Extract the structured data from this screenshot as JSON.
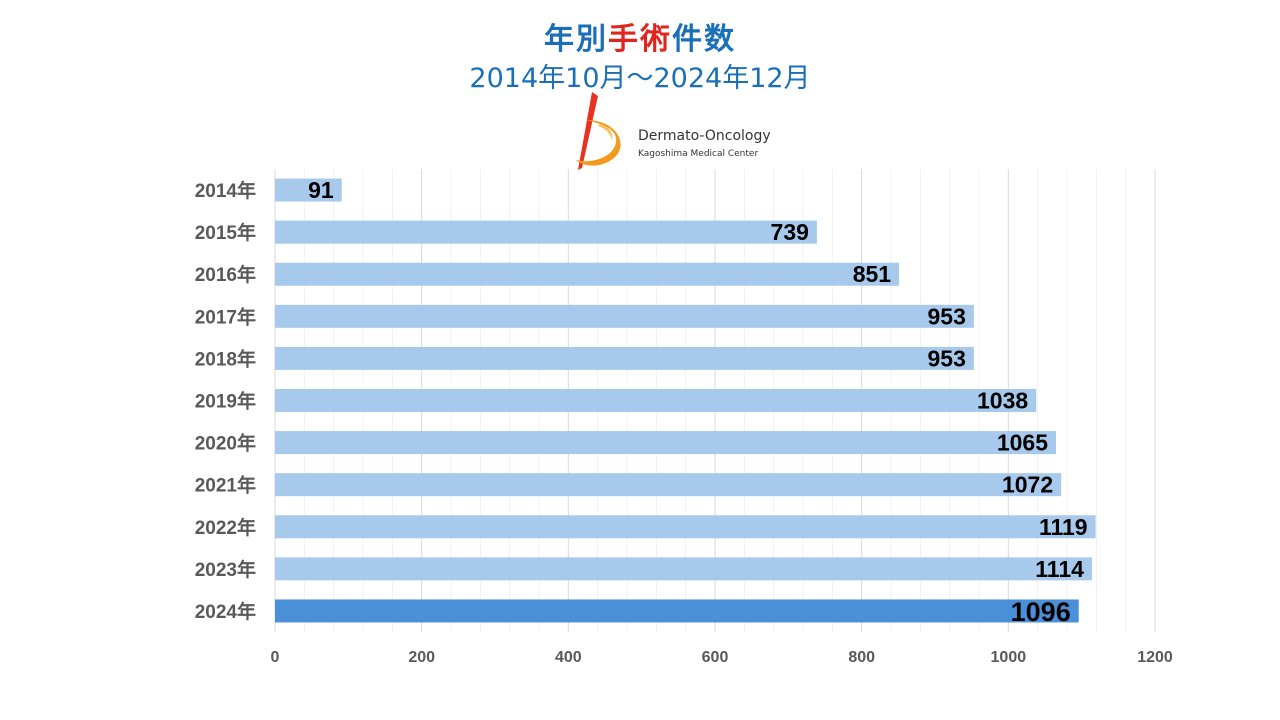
{
  "title": {
    "line1_part1": "年別",
    "line1_highlight": "手術",
    "line1_part2": "件数",
    "line2": "2014年10月～2024年12月"
  },
  "logo": {
    "name": "Dermato-Oncology",
    "subtitle": "Kagoshima Medical Center"
  },
  "colors": {
    "title": "#1a6fb8",
    "highlight": "#e0261c",
    "bar": "#a7c9ec",
    "bar_highlight": "#4a90d9",
    "grid": "#d9d9d9",
    "label": "#595959"
  },
  "chart_data": {
    "type": "bar",
    "orientation": "horizontal",
    "categories": [
      "2014年",
      "2015年",
      "2016年",
      "2017年",
      "2018年",
      "2019年",
      "2020年",
      "2021年",
      "2022年",
      "2023年",
      "2024年"
    ],
    "values": [
      91,
      739,
      851,
      953,
      953,
      1038,
      1065,
      1072,
      1119,
      1114,
      1096
    ],
    "highlighted_category": "2024年",
    "xlim": [
      0,
      1200
    ],
    "x_ticks": [
      0,
      200,
      400,
      600,
      800,
      1000,
      1200
    ],
    "grid": true,
    "data_labels": true
  }
}
